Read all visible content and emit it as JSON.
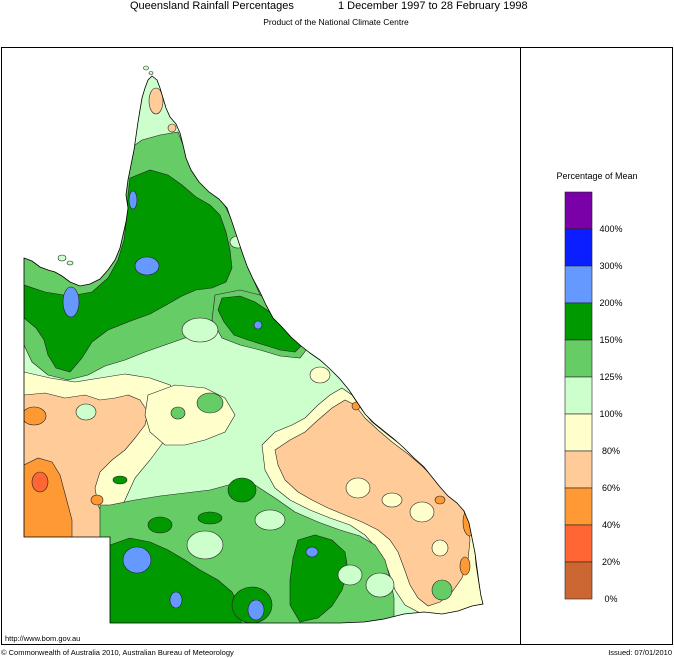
{
  "header": {
    "title": "Queensland Rainfall Percentages",
    "period": "1 December 1997 to 28 February 1998",
    "subtitle": "Product of the National Climate Centre"
  },
  "legend": {
    "title": "Percentage of Mean",
    "labels": [
      "400%",
      "300%",
      "200%",
      "150%",
      "125%",
      "100%",
      "80%",
      "60%",
      "40%",
      "20%",
      "0%"
    ],
    "colors": [
      "#7a00a8",
      "#0a1eff",
      "#6699ff",
      "#009900",
      "#66cc66",
      "#ccffcc",
      "#ffffcc",
      "#ffcc99",
      "#ff9933",
      "#ff6633",
      "#cc6633"
    ]
  },
  "footer": {
    "url": "http://www.bom.gov.au",
    "copyright": "© Commonwealth of Australia 2010, Australian Bureau of Meteorology",
    "issued": "Issued: 07/01/2010"
  }
}
